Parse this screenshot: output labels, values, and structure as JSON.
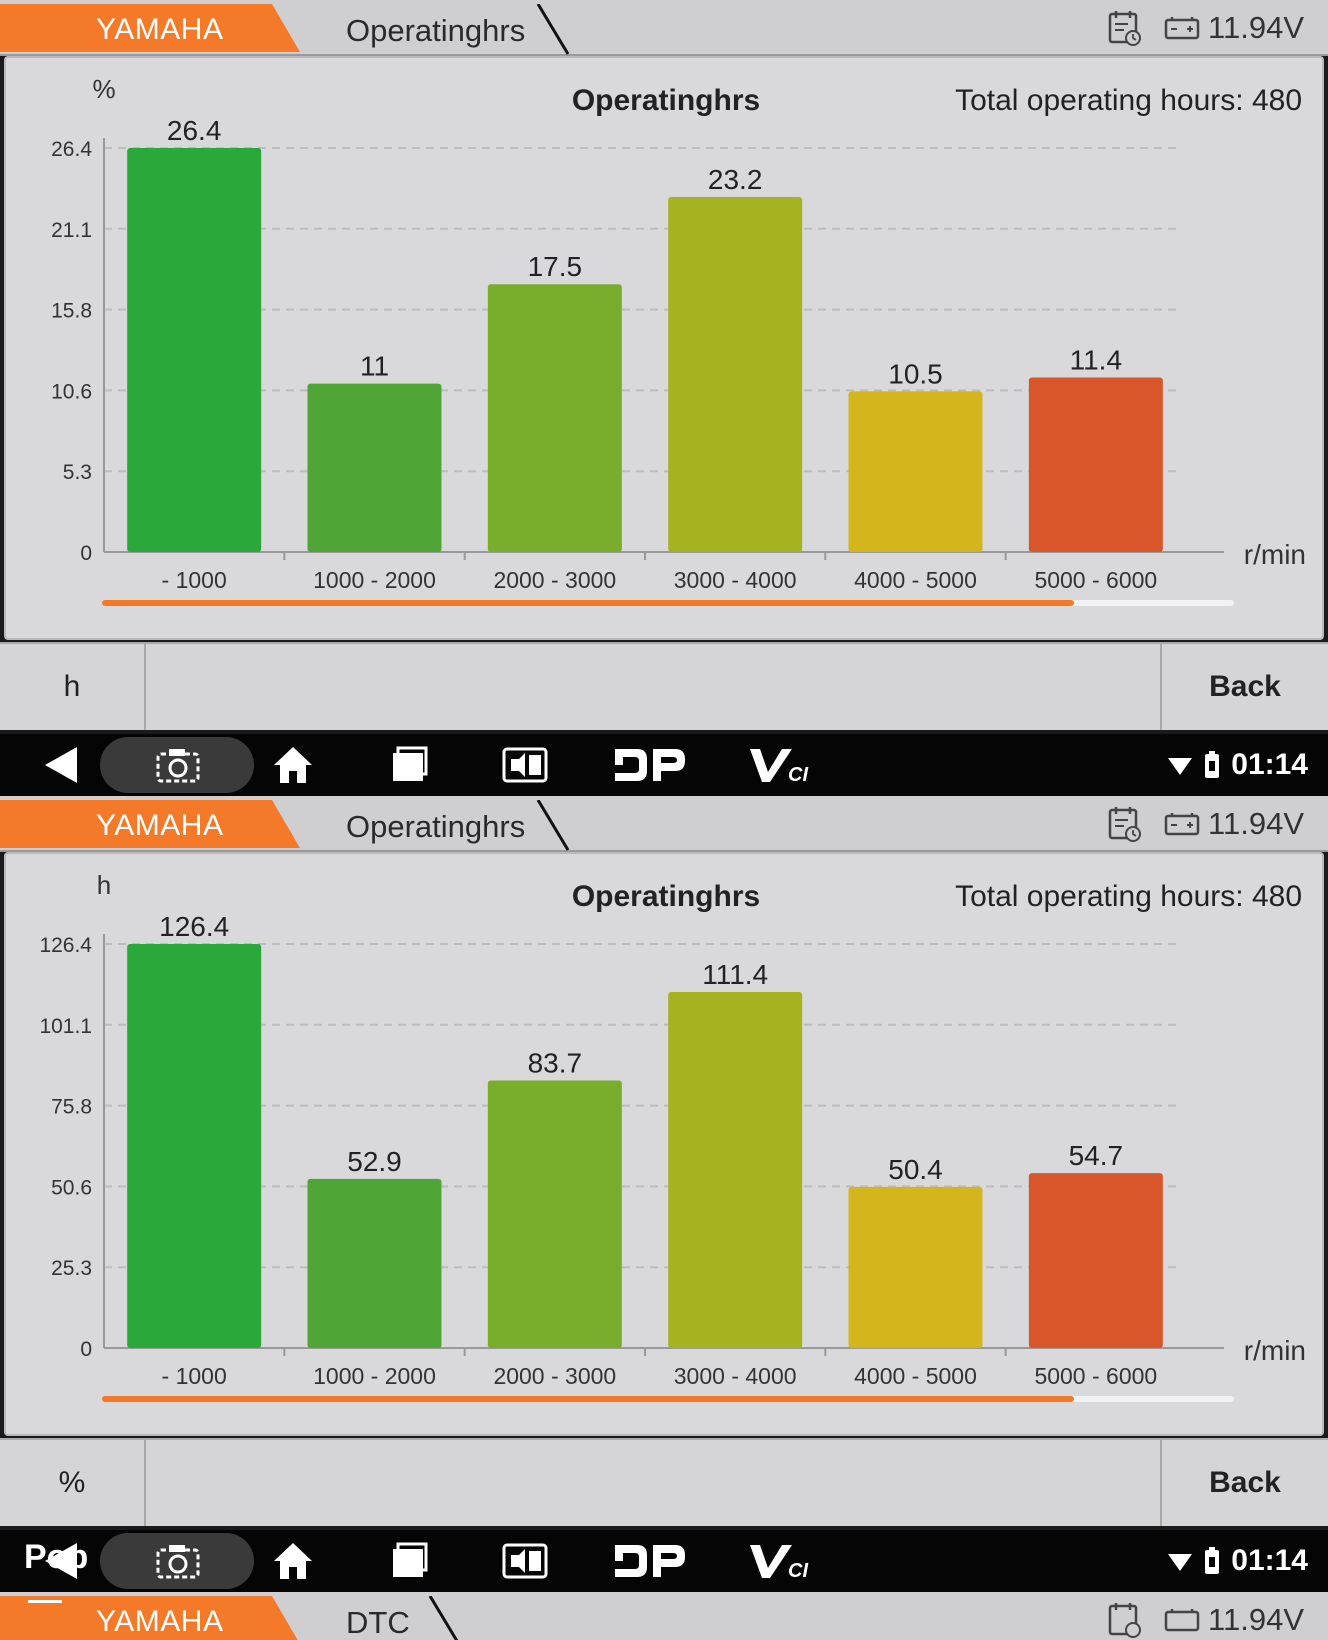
{
  "screens": [
    {
      "brand": "YAMAHA",
      "page": "Operatinghrs",
      "voltage": "11.94V",
      "chart_data": {
        "type": "bar",
        "title": "Operatinghrs",
        "total": "Total operating hours: 480",
        "ylabel": "%",
        "xlabel": "r/min",
        "categories": [
          "- 1000",
          "1000 - 2000",
          "2000 - 3000",
          "3000 - 4000",
          "4000 - 5000",
          "5000 - 6000"
        ],
        "values": [
          26.4,
          11,
          17.5,
          23.2,
          10.5,
          11.4
        ],
        "value_labels": [
          "26.4",
          "11",
          "17.5",
          "23.2",
          "10.5",
          "11.4"
        ],
        "yticks": [
          "0",
          "5.3",
          "10.6",
          "15.8",
          "21.1",
          "26.4"
        ],
        "ylim": [
          0,
          26.4
        ],
        "colors": [
          "#2aa83a",
          "#4fa535",
          "#79ad2c",
          "#a6b321",
          "#d3b51c",
          "#d9562a"
        ],
        "grid": true
      },
      "buttons": {
        "left": "h",
        "right": "Back"
      }
    },
    {
      "brand": "YAMAHA",
      "page": "Operatinghrs",
      "voltage": "11.94V",
      "chart_data": {
        "type": "bar",
        "title": "Operatinghrs",
        "total": "Total operating hours: 480",
        "ylabel": "h",
        "xlabel": "r/min",
        "categories": [
          "- 1000",
          "1000 - 2000",
          "2000 - 3000",
          "3000 - 4000",
          "4000 - 5000",
          "5000 - 6000"
        ],
        "values": [
          126.4,
          52.9,
          83.7,
          111.4,
          50.4,
          54.7
        ],
        "value_labels": [
          "126.4",
          "52.9",
          "83.7",
          "111.4",
          "50.4",
          "54.7"
        ],
        "yticks": [
          "0",
          "25.3",
          "50.6",
          "75.8",
          "101.1",
          "126.4"
        ],
        "ylim": [
          0,
          126.4
        ],
        "colors": [
          "#2aa83a",
          "#4fa535",
          "#79ad2c",
          "#a6b321",
          "#d3b51c",
          "#d9562a"
        ],
        "grid": true
      },
      "buttons": {
        "left": "%",
        "right": "Back"
      }
    }
  ],
  "nav": {
    "time": "01:14",
    "pop_text": "Pop"
  },
  "bottom_strip": {
    "brand": "YAMAHA",
    "page": "DTC",
    "voltage": "11.94V"
  },
  "accent": "#f47a2a",
  "scrollbar_color": "#f07a2c"
}
